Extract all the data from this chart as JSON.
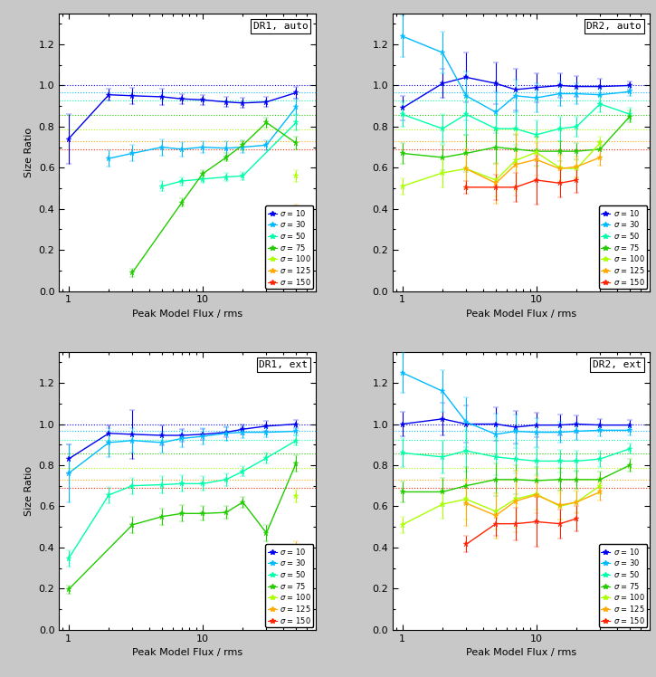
{
  "panels": [
    {
      "title": "DR1, auto",
      "series": [
        {
          "sigma": "10",
          "color": "#0000EE",
          "x": [
            1.0,
            2.0,
            3.0,
            5.0,
            7.0,
            10.0,
            15.0,
            20.0,
            30.0,
            50.0
          ],
          "y": [
            0.74,
            0.955,
            0.95,
            0.945,
            0.935,
            0.93,
            0.92,
            0.915,
            0.92,
            0.965
          ],
          "yerr": [
            0.12,
            0.03,
            0.04,
            0.04,
            0.025,
            0.025,
            0.025,
            0.025,
            0.025,
            0.03
          ]
        },
        {
          "sigma": "30",
          "color": "#00BBFF",
          "x": [
            2.0,
            3.0,
            5.0,
            7.0,
            10.0,
            15.0,
            20.0,
            30.0,
            50.0
          ],
          "y": [
            0.645,
            0.67,
            0.7,
            0.69,
            0.7,
            0.695,
            0.7,
            0.71,
            0.895
          ],
          "yerr": [
            0.04,
            0.04,
            0.04,
            0.035,
            0.03,
            0.035,
            0.03,
            0.025,
            0.04
          ]
        },
        {
          "sigma": "50",
          "color": "#00FFAA",
          "x": [
            5.0,
            7.0,
            10.0,
            15.0,
            20.0,
            50.0
          ],
          "y": [
            0.51,
            0.535,
            0.545,
            0.555,
            0.56,
            0.82
          ],
          "yerr": [
            0.025,
            0.02,
            0.02,
            0.02,
            0.02,
            0.04
          ]
        },
        {
          "sigma": "75",
          "color": "#22CC00",
          "x": [
            3.0,
            7.0,
            10.0,
            15.0,
            20.0,
            30.0,
            50.0
          ],
          "y": [
            0.09,
            0.43,
            0.57,
            0.65,
            0.71,
            0.82,
            0.72
          ],
          "yerr": [
            0.02,
            0.02,
            0.02,
            0.02,
            0.025,
            0.025,
            0.03
          ]
        },
        {
          "sigma": "100",
          "color": "#AAFF00",
          "x": [
            50.0
          ],
          "y": [
            0.56
          ],
          "yerr": [
            0.03
          ]
        },
        {
          "sigma": "125",
          "color": "#FFAA00",
          "x": [
            50.0
          ],
          "y": [
            0.35
          ],
          "yerr": [
            0.07
          ]
        },
        {
          "sigma": "150",
          "color": "#FF2200",
          "x": [],
          "y": [],
          "yerr": []
        }
      ]
    },
    {
      "title": "DR2, auto",
      "series": [
        {
          "sigma": "10",
          "color": "#0000EE",
          "x": [
            1.0,
            2.0,
            3.0,
            5.0,
            7.0,
            10.0,
            15.0,
            20.0,
            30.0,
            50.0
          ],
          "y": [
            0.89,
            1.01,
            1.04,
            1.01,
            0.98,
            0.99,
            1.0,
            0.995,
            0.995,
            1.0
          ],
          "yerr": [
            0.06,
            0.07,
            0.12,
            0.1,
            0.1,
            0.07,
            0.06,
            0.05,
            0.04,
            0.02
          ]
        },
        {
          "sigma": "30",
          "color": "#00BBFF",
          "x": [
            1.0,
            2.0,
            3.0,
            5.0,
            7.0,
            10.0,
            15.0,
            20.0,
            30.0,
            50.0
          ],
          "y": [
            1.24,
            1.16,
            0.95,
            0.87,
            0.95,
            0.94,
            0.96,
            0.96,
            0.955,
            0.97
          ],
          "yerr": [
            0.1,
            0.1,
            0.12,
            0.1,
            0.08,
            0.07,
            0.06,
            0.05,
            0.04,
            0.02
          ]
        },
        {
          "sigma": "50",
          "color": "#00FFAA",
          "x": [
            1.0,
            2.0,
            3.0,
            5.0,
            7.0,
            10.0,
            15.0,
            20.0,
            30.0,
            50.0
          ],
          "y": [
            0.86,
            0.79,
            0.86,
            0.79,
            0.79,
            0.76,
            0.79,
            0.8,
            0.91,
            0.86
          ],
          "yerr": [
            0.06,
            0.07,
            0.1,
            0.09,
            0.08,
            0.07,
            0.06,
            0.05,
            0.04,
            0.03
          ]
        },
        {
          "sigma": "75",
          "color": "#22CC00",
          "x": [
            1.0,
            2.0,
            3.0,
            5.0,
            7.0,
            10.0,
            15.0,
            20.0,
            30.0,
            50.0
          ],
          "y": [
            0.67,
            0.65,
            0.67,
            0.7,
            0.69,
            0.68,
            0.68,
            0.68,
            0.69,
            0.85
          ],
          "yerr": [
            0.05,
            0.06,
            0.09,
            0.08,
            0.07,
            0.07,
            0.05,
            0.04,
            0.04,
            0.03
          ]
        },
        {
          "sigma": "100",
          "color": "#AAFF00",
          "x": [
            1.0,
            2.0,
            3.0,
            5.0,
            7.0,
            10.0,
            15.0,
            20.0,
            30.0
          ],
          "y": [
            0.51,
            0.575,
            0.595,
            0.54,
            0.635,
            0.675,
            0.6,
            0.595,
            0.72
          ],
          "yerr": [
            0.04,
            0.07,
            0.09,
            0.08,
            0.15,
            0.07,
            0.06,
            0.04,
            0.03
          ]
        },
        {
          "sigma": "125",
          "color": "#FFAA00",
          "x": [
            3.0,
            5.0,
            7.0,
            10.0,
            15.0,
            20.0,
            30.0
          ],
          "y": [
            0.595,
            0.525,
            0.615,
            0.64,
            0.595,
            0.605,
            0.65
          ],
          "yerr": [
            0.1,
            0.1,
            0.15,
            0.08,
            0.07,
            0.05,
            0.04
          ]
        },
        {
          "sigma": "150",
          "color": "#FF2200",
          "x": [
            3.0,
            5.0,
            7.0,
            10.0,
            15.0,
            20.0
          ],
          "y": [
            0.505,
            0.505,
            0.505,
            0.54,
            0.525,
            0.54
          ],
          "yerr": [
            0.03,
            0.06,
            0.07,
            0.12,
            0.07,
            0.06
          ]
        }
      ]
    },
    {
      "title": "DR1, ext",
      "series": [
        {
          "sigma": "10",
          "color": "#0000EE",
          "x": [
            1.0,
            2.0,
            3.0,
            5.0,
            7.0,
            10.0,
            15.0,
            20.0,
            30.0,
            50.0
          ],
          "y": [
            0.83,
            0.955,
            0.95,
            0.945,
            0.945,
            0.95,
            0.96,
            0.975,
            0.99,
            1.0
          ],
          "yerr": [
            0.07,
            0.04,
            0.12,
            0.05,
            0.03,
            0.025,
            0.025,
            0.025,
            0.025,
            0.02
          ]
        },
        {
          "sigma": "30",
          "color": "#00BBFF",
          "x": [
            1.0,
            2.0,
            3.0,
            5.0,
            7.0,
            10.0,
            15.0,
            20.0,
            30.0,
            50.0
          ],
          "y": [
            0.76,
            0.91,
            0.92,
            0.91,
            0.93,
            0.94,
            0.955,
            0.96,
            0.96,
            0.965
          ],
          "yerr": [
            0.14,
            0.07,
            0.06,
            0.05,
            0.04,
            0.04,
            0.035,
            0.03,
            0.025,
            0.02
          ]
        },
        {
          "sigma": "50",
          "color": "#00FFAA",
          "x": [
            1.0,
            2.0,
            3.0,
            5.0,
            7.0,
            10.0,
            15.0,
            20.0,
            30.0,
            50.0
          ],
          "y": [
            0.345,
            0.655,
            0.7,
            0.705,
            0.71,
            0.71,
            0.73,
            0.77,
            0.835,
            0.92
          ],
          "yerr": [
            0.04,
            0.04,
            0.04,
            0.04,
            0.04,
            0.035,
            0.03,
            0.025,
            0.025,
            0.025
          ]
        },
        {
          "sigma": "75",
          "color": "#22CC00",
          "x": [
            1.0,
            3.0,
            5.0,
            7.0,
            10.0,
            15.0,
            20.0,
            30.0,
            50.0
          ],
          "y": [
            0.195,
            0.51,
            0.55,
            0.565,
            0.565,
            0.57,
            0.62,
            0.47,
            0.81
          ],
          "yerr": [
            0.02,
            0.04,
            0.04,
            0.04,
            0.035,
            0.03,
            0.025,
            0.04,
            0.04
          ]
        },
        {
          "sigma": "100",
          "color": "#AAFF00",
          "x": [
            50.0
          ],
          "y": [
            0.65
          ],
          "yerr": [
            0.03
          ]
        },
        {
          "sigma": "125",
          "color": "#FFAA00",
          "x": [
            50.0
          ],
          "y": [
            0.35
          ],
          "yerr": [
            0.08
          ]
        },
        {
          "sigma": "150",
          "color": "#FF2200",
          "x": [],
          "y": [],
          "yerr": []
        }
      ]
    },
    {
      "title": "DR2, ext",
      "series": [
        {
          "sigma": "10",
          "color": "#0000EE",
          "x": [
            1.0,
            2.0,
            3.0,
            5.0,
            7.0,
            10.0,
            15.0,
            20.0,
            30.0,
            50.0
          ],
          "y": [
            1.0,
            1.025,
            1.0,
            1.0,
            0.985,
            0.995,
            0.995,
            1.0,
            0.995,
            0.995
          ],
          "yerr": [
            0.06,
            0.08,
            0.09,
            0.08,
            0.08,
            0.06,
            0.05,
            0.04,
            0.03,
            0.025
          ]
        },
        {
          "sigma": "30",
          "color": "#00BBFF",
          "x": [
            1.0,
            2.0,
            3.0,
            5.0,
            7.0,
            10.0,
            15.0,
            20.0,
            30.0,
            50.0
          ],
          "y": [
            1.25,
            1.16,
            1.01,
            0.95,
            0.965,
            0.96,
            0.96,
            0.965,
            0.97,
            0.97
          ],
          "yerr": [
            0.1,
            0.1,
            0.12,
            0.1,
            0.08,
            0.07,
            0.05,
            0.04,
            0.03,
            0.025
          ]
        },
        {
          "sigma": "50",
          "color": "#00FFAA",
          "x": [
            1.0,
            2.0,
            3.0,
            5.0,
            7.0,
            10.0,
            15.0,
            20.0,
            30.0,
            50.0
          ],
          "y": [
            0.86,
            0.84,
            0.87,
            0.84,
            0.83,
            0.82,
            0.82,
            0.82,
            0.83,
            0.88
          ],
          "yerr": [
            0.07,
            0.08,
            0.1,
            0.09,
            0.07,
            0.065,
            0.055,
            0.05,
            0.04,
            0.025
          ]
        },
        {
          "sigma": "75",
          "color": "#22CC00",
          "x": [
            1.0,
            2.0,
            3.0,
            5.0,
            7.0,
            10.0,
            15.0,
            20.0,
            30.0,
            50.0
          ],
          "y": [
            0.67,
            0.67,
            0.7,
            0.73,
            0.73,
            0.725,
            0.73,
            0.73,
            0.73,
            0.8
          ],
          "yerr": [
            0.05,
            0.07,
            0.09,
            0.08,
            0.07,
            0.065,
            0.055,
            0.045,
            0.04,
            0.03
          ]
        },
        {
          "sigma": "100",
          "color": "#AAFF00",
          "x": [
            1.0,
            2.0,
            3.0,
            5.0,
            7.0,
            10.0,
            15.0,
            20.0,
            30.0
          ],
          "y": [
            0.51,
            0.61,
            0.635,
            0.575,
            0.635,
            0.66,
            0.6,
            0.62,
            0.7
          ],
          "yerr": [
            0.04,
            0.07,
            0.1,
            0.09,
            0.14,
            0.075,
            0.065,
            0.05,
            0.04
          ]
        },
        {
          "sigma": "125",
          "color": "#FFAA00",
          "x": [
            3.0,
            5.0,
            7.0,
            10.0,
            15.0,
            20.0,
            30.0
          ],
          "y": [
            0.615,
            0.555,
            0.625,
            0.655,
            0.605,
            0.62,
            0.67
          ],
          "yerr": [
            0.11,
            0.11,
            0.15,
            0.09,
            0.07,
            0.055,
            0.04
          ]
        },
        {
          "sigma": "150",
          "color": "#FF2200",
          "x": [
            3.0,
            5.0,
            7.0,
            10.0,
            15.0,
            20.0
          ],
          "y": [
            0.415,
            0.515,
            0.515,
            0.525,
            0.515,
            0.54
          ],
          "yerr": [
            0.04,
            0.06,
            0.08,
            0.12,
            0.07,
            0.06
          ]
        }
      ]
    }
  ],
  "hlines": [
    1.0,
    0.965,
    0.925,
    0.855,
    0.785,
    0.73,
    0.69
  ],
  "hline_colors": [
    "#0000EE",
    "#00BBFF",
    "#00FFAA",
    "#22CC00",
    "#AAFF00",
    "#FFAA00",
    "#FF2200"
  ],
  "legend_sigmas": [
    "10",
    "30",
    "50",
    "75",
    "100",
    "125",
    "150"
  ],
  "legend_colors": [
    "#0000EE",
    "#00BBFF",
    "#00FFAA",
    "#22CC00",
    "#AAFF00",
    "#FFAA00",
    "#FF2200"
  ],
  "xlabel": "Peak Model Flux / rms",
  "ylabel": "Size Ratio",
  "xlim": [
    0.85,
    70
  ],
  "ylim": [
    0.0,
    1.35
  ],
  "fig_bg": "#C8C8C8",
  "ax_bg": "#FFFFFF"
}
